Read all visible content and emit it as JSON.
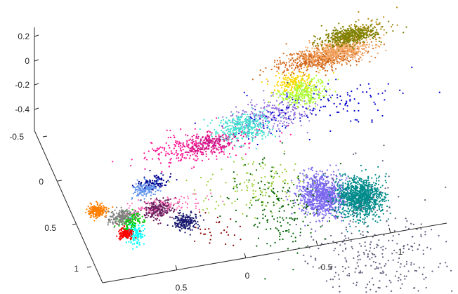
{
  "chart_data": {
    "type": "scatter",
    "projection": "3d",
    "title": "",
    "xlabel": "",
    "ylabel": "",
    "zlabel": "",
    "grid": false,
    "legend": "none",
    "axes": {
      "x": {
        "range": [
          -1.25,
          0.75
        ],
        "ticks": [
          0.5,
          0,
          -0.5,
          -1
        ],
        "tick_labels": [
          "0.5",
          "0",
          "-0.5",
          "-1"
        ]
      },
      "y": {
        "range": [
          -0.5,
          1.1
        ],
        "ticks": [
          -0.5,
          0,
          0.5,
          1
        ],
        "tick_labels": [
          "-0.5",
          "0",
          "0.5",
          "1"
        ]
      },
      "z": {
        "range": [
          -0.45,
          0.25
        ],
        "ticks": [
          0.2,
          0,
          -0.2,
          -0.4
        ],
        "tick_labels": [
          "0.2",
          "0",
          "-0.2",
          "-0.4"
        ]
      }
    },
    "clusters": [
      {
        "color": "#7B68EE",
        "count": 900,
        "center": [
          -0.55,
          -0.1,
          -0.35
        ],
        "spread": [
          0.08,
          0.12,
          0.03
        ]
      },
      {
        "color": "#008B8B",
        "count": 1000,
        "center": [
          -0.8,
          0.0,
          -0.35
        ],
        "spread": [
          0.08,
          0.1,
          0.04
        ]
      },
      {
        "color": "#5F5F7F",
        "count": 400,
        "center": [
          -0.8,
          0.6,
          -0.45
        ],
        "spread": [
          0.25,
          0.4,
          0.03
        ]
      },
      {
        "color": "#006400",
        "count": 180,
        "center": [
          -0.2,
          0.0,
          -0.33
        ],
        "spread": [
          0.15,
          0.25,
          0.05
        ]
      },
      {
        "color": "#9ACD32",
        "count": 120,
        "center": [
          -0.1,
          -0.2,
          -0.25
        ],
        "spread": [
          0.2,
          0.15,
          0.03
        ]
      },
      {
        "color": "#8B0000",
        "count": 30,
        "center": [
          0.2,
          0.0,
          -0.43
        ],
        "spread": [
          0.1,
          0.1,
          0.02
        ]
      },
      {
        "color": "#191970",
        "count": 200,
        "center": [
          0.38,
          -0.2,
          -0.45
        ],
        "spread": [
          0.04,
          0.05,
          0.01
        ]
      },
      {
        "color": "#6B1F5F",
        "count": 250,
        "center": [
          0.55,
          -0.3,
          -0.38
        ],
        "spread": [
          0.05,
          0.05,
          0.02
        ]
      },
      {
        "color": "#00FFFF",
        "count": 150,
        "center": [
          0.75,
          -0.15,
          -0.43
        ],
        "spread": [
          0.03,
          0.05,
          0.02
        ]
      },
      {
        "color": "#FF0000",
        "count": 150,
        "center": [
          0.8,
          -0.2,
          -0.46
        ],
        "spread": [
          0.03,
          0.03,
          0.01
        ]
      },
      {
        "color": "#00CC00",
        "count": 150,
        "center": [
          0.75,
          -0.3,
          -0.43
        ],
        "spread": [
          0.04,
          0.04,
          0.01
        ]
      },
      {
        "color": "#FF7F00",
        "count": 200,
        "center": [
          0.95,
          -0.45,
          -0.42
        ],
        "spread": [
          0.03,
          0.03,
          0.02
        ]
      },
      {
        "color": "#808080",
        "count": 180,
        "center": [
          0.8,
          -0.35,
          -0.43
        ],
        "spread": [
          0.05,
          0.04,
          0.01
        ]
      },
      {
        "color": "#FF69B4",
        "count": 90,
        "center": [
          0.5,
          -0.35,
          -0.4
        ],
        "spread": [
          0.15,
          0.05,
          0.02
        ]
      },
      {
        "color": "#9370DB",
        "count": 250,
        "center": [
          -0.3,
          -0.6,
          0.02
        ],
        "spread": [
          0.15,
          0.05,
          0.05
        ]
      },
      {
        "color": "#0000CD",
        "count": 150,
        "center": [
          -0.6,
          -0.55,
          0.05
        ],
        "spread": [
          0.3,
          0.05,
          0.08
        ]
      },
      {
        "color": "#FF1493",
        "count": 300,
        "center": [
          0.2,
          -0.6,
          -0.15
        ],
        "spread": [
          0.2,
          0.05,
          0.05
        ]
      },
      {
        "color": "#40E0D0",
        "count": 350,
        "center": [
          -0.1,
          -0.6,
          -0.05
        ],
        "spread": [
          0.1,
          0.05,
          0.05
        ]
      },
      {
        "color": "#ADFF2F",
        "count": 300,
        "center": [
          -0.55,
          -0.7,
          0.08
        ],
        "spread": [
          0.08,
          0.05,
          0.04
        ]
      },
      {
        "color": "#D2691E",
        "count": 500,
        "center": [
          -0.7,
          -0.9,
          0.18
        ],
        "spread": [
          0.15,
          0.03,
          0.04
        ]
      },
      {
        "color": "#F4A460",
        "count": 500,
        "center": [
          -0.85,
          -1.0,
          0.15
        ],
        "spread": [
          0.12,
          0.03,
          0.04
        ]
      },
      {
        "color": "#808000",
        "count": 500,
        "center": [
          -0.95,
          -1.05,
          0.22
        ],
        "spread": [
          0.1,
          0.03,
          0.03
        ]
      },
      {
        "color": "#00008B",
        "count": 120,
        "center": [
          0.55,
          -0.5,
          -0.3
        ],
        "spread": [
          0.05,
          0.03,
          0.02
        ]
      },
      {
        "color": "#6495ED",
        "count": 150,
        "center": [
          0.6,
          -0.5,
          -0.35
        ],
        "spread": [
          0.05,
          0.03,
          0.02
        ]
      },
      {
        "color": "#C71585",
        "count": 150,
        "center": [
          0.15,
          -0.55,
          -0.1
        ],
        "spread": [
          0.08,
          0.03,
          0.03
        ]
      },
      {
        "color": "#FFD700",
        "count": 150,
        "center": [
          -0.5,
          -0.8,
          0.1
        ],
        "spread": [
          0.08,
          0.03,
          0.03
        ]
      },
      {
        "color": "#B8860B",
        "count": 30,
        "center": [
          -1.1,
          -1.1,
          0.25
        ],
        "spread": [
          0.08,
          0.03,
          0.04
        ]
      }
    ]
  }
}
